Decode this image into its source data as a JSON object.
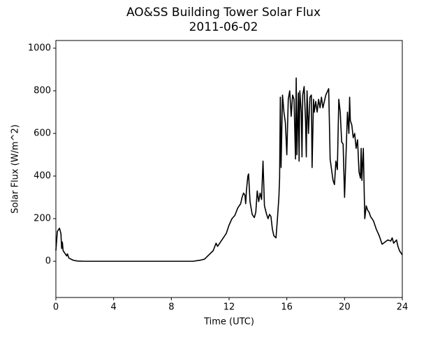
{
  "chart_data": {
    "type": "line",
    "title": "AO&SS Building Tower Solar Flux",
    "subtitle": "2011-06-02",
    "x_label": "Time (UTC)",
    "y_label": "Solar Flux (W/m^2)",
    "xlim": [
      0,
      24
    ],
    "xticks": [
      0,
      4,
      8,
      12,
      16,
      20,
      24
    ],
    "ylim": [
      -170,
      1036
    ],
    "yticks": [
      0,
      200,
      400,
      600,
      800,
      1000
    ],
    "grid": false,
    "series": [
      {
        "name": "Solar Flux",
        "color": "#000000",
        "x": [
          0,
          0.1,
          0.25,
          0.35,
          0.4,
          0.45,
          0.5,
          0.6,
          0.75,
          0.8,
          0.9,
          1.2,
          1.5,
          2,
          4,
          6,
          8,
          9.5,
          10,
          10.3,
          10.6,
          10.9,
          11.1,
          11.2,
          11.4,
          11.6,
          11.8,
          12,
          12.2,
          12.4,
          12.6,
          12.8,
          12.9,
          13.0,
          13.1,
          13.15,
          13.2,
          13.3,
          13.35,
          13.45,
          13.6,
          13.75,
          13.85,
          13.95,
          14.05,
          14.15,
          14.25,
          14.35,
          14.45,
          14.6,
          14.7,
          14.8,
          14.9,
          15.0,
          15.1,
          15.25,
          15.35,
          15.45,
          15.5,
          15.55,
          15.6,
          15.7,
          15.8,
          15.9,
          16.0,
          16.1,
          16.2,
          16.3,
          16.4,
          16.5,
          16.6,
          16.65,
          16.7,
          16.8,
          16.85,
          16.9,
          17.0,
          17.05,
          17.1,
          17.2,
          17.3,
          17.35,
          17.4,
          17.5,
          17.6,
          17.7,
          17.75,
          17.85,
          17.9,
          18.0,
          18.1,
          18.2,
          18.3,
          18.4,
          18.5,
          18.7,
          18.9,
          18.95,
          19.0,
          19.1,
          19.2,
          19.3,
          19.4,
          19.5,
          19.6,
          19.7,
          19.8,
          19.9,
          20.0,
          20.1,
          20.2,
          20.3,
          20.35,
          20.4,
          20.5,
          20.6,
          20.7,
          20.8,
          20.9,
          21.0,
          21.1,
          21.15,
          21.2,
          21.3,
          21.4,
          21.5,
          21.6,
          21.7,
          21.8,
          21.9,
          22.0,
          22.2,
          22.4,
          22.6,
          22.8,
          23.0,
          23.2,
          23.3,
          23.4,
          23.6,
          23.7,
          23.8,
          24
        ],
        "values": [
          50,
          140,
          155,
          130,
          60,
          90,
          50,
          40,
          25,
          35,
          15,
          5,
          1,
          0,
          0,
          0,
          0,
          0,
          5,
          10,
          30,
          50,
          85,
          70,
          90,
          110,
          130,
          170,
          200,
          215,
          250,
          270,
          300,
          320,
          310,
          270,
          330,
          400,
          410,
          280,
          220,
          205,
          230,
          330,
          280,
          320,
          290,
          470,
          260,
          220,
          200,
          220,
          210,
          150,
          120,
          110,
          200,
          300,
          390,
          770,
          440,
          780,
          700,
          650,
          500,
          760,
          800,
          680,
          780,
          760,
          480,
          860,
          500,
          790,
          470,
          800,
          700,
          490,
          780,
          820,
          650,
          490,
          800,
          600,
          770,
          780,
          440,
          760,
          700,
          750,
          700,
          760,
          720,
          770,
          720,
          780,
          810,
          650,
          480,
          430,
          380,
          360,
          470,
          430,
          760,
          700,
          560,
          550,
          300,
          500,
          700,
          600,
          770,
          660,
          640,
          580,
          600,
          530,
          570,
          420,
          390,
          530,
          380,
          530,
          200,
          260,
          240,
          230,
          210,
          200,
          190,
          150,
          120,
          80,
          90,
          100,
          95,
          110,
          85,
          100,
          70,
          50,
          30
        ]
      }
    ]
  }
}
